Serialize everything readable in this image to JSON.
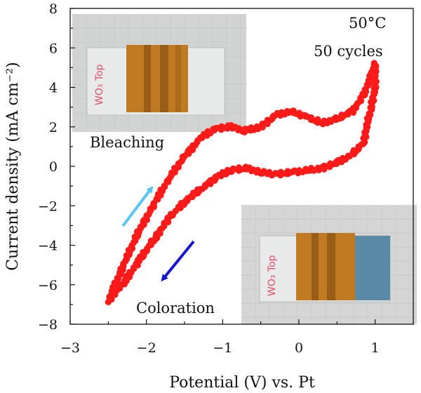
{
  "chart_data": {
    "type": "scatter",
    "title": "",
    "xlabel": "Potential (V) vs. Pt",
    "ylabel": "Current density (mA cm⁻²)",
    "xlim": [
      -3,
      1.5
    ],
    "ylim": [
      -8,
      8
    ],
    "x_ticks": [
      -3,
      -2,
      -1,
      0,
      1
    ],
    "y_ticks": [
      -8,
      -6,
      -4,
      -2,
      0,
      2,
      4,
      6,
      8
    ],
    "grid": false,
    "marker_color": "#ff1a1a",
    "annotations": {
      "temperature": "50°C",
      "cycles": "50 cycles",
      "bleaching": "Bleaching",
      "coloration": "Coloration",
      "arrow_bleaching_color": "#5bc4f0",
      "arrow_coloration_color": "#1515d0",
      "label_text": "WO₃ Top"
    },
    "series": [
      {
        "values": [
          {
            "x": -2.5,
            "y": -6.8
          },
          {
            "x": -2.3,
            "y": -5.0
          },
          {
            "x": -2.1,
            "y": -3.3
          },
          {
            "x": -1.9,
            "y": -1.9
          },
          {
            "x": -1.7,
            "y": -0.6
          },
          {
            "x": -1.5,
            "y": 0.5
          },
          {
            "x": -1.3,
            "y": 1.4
          },
          {
            "x": -1.1,
            "y": 1.9
          },
          {
            "x": -0.9,
            "y": 2.0
          },
          {
            "x": -0.7,
            "y": 1.8
          },
          {
            "x": -0.5,
            "y": 2.0
          },
          {
            "x": -0.3,
            "y": 2.6
          },
          {
            "x": -0.1,
            "y": 2.8
          },
          {
            "x": 0.1,
            "y": 2.5
          },
          {
            "x": 0.3,
            "y": 2.2
          },
          {
            "x": 0.5,
            "y": 2.4
          },
          {
            "x": 0.7,
            "y": 2.8
          },
          {
            "x": 0.85,
            "y": 3.6
          },
          {
            "x": 0.95,
            "y": 4.6
          },
          {
            "x": 1.0,
            "y": 5.2
          },
          {
            "x": 1.0,
            "y": 4.0
          },
          {
            "x": 0.95,
            "y": 3.0
          },
          {
            "x": 0.9,
            "y": 2.2
          },
          {
            "x": 0.85,
            "y": 1.2
          },
          {
            "x": 0.7,
            "y": 0.6
          },
          {
            "x": 0.5,
            "y": 0.2
          },
          {
            "x": 0.3,
            "y": -0.1
          },
          {
            "x": 0.1,
            "y": -0.2
          },
          {
            "x": -0.1,
            "y": -0.3
          },
          {
            "x": -0.3,
            "y": -0.4
          },
          {
            "x": -0.5,
            "y": -0.3
          },
          {
            "x": -0.7,
            "y": -0.1
          },
          {
            "x": -0.9,
            "y": -0.2
          },
          {
            "x": -1.1,
            "y": -0.6
          },
          {
            "x": -1.3,
            "y": -1.2
          },
          {
            "x": -1.5,
            "y": -1.8
          },
          {
            "x": -1.7,
            "y": -2.6
          },
          {
            "x": -1.9,
            "y": -3.7
          },
          {
            "x": -2.1,
            "y": -4.8
          },
          {
            "x": -2.3,
            "y": -5.9
          },
          {
            "x": -2.5,
            "y": -6.8
          }
        ]
      }
    ]
  }
}
